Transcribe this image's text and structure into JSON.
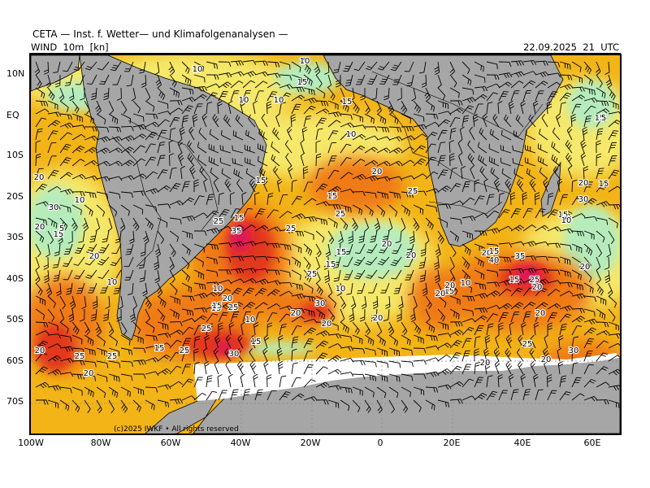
{
  "header": {
    "title": "CETA — Inst. f. Wetter— und Klimafolgenanalysen —",
    "subtitle": "WIND  10m  [kn]",
    "timestamp": "22.09.2025  21  UTC"
  },
  "map": {
    "copyright": "(c)2025 IWKF • All rights reserved",
    "lat_labels": [
      "10N",
      "EQ",
      "10S",
      "20S",
      "30S",
      "40S",
      "50S",
      "60S",
      "70S"
    ],
    "lon_labels": [
      "100W",
      "80W",
      "60W",
      "40W",
      "20W",
      "0",
      "20E",
      "40E",
      "60E"
    ],
    "speed_labels": [
      "5",
      "10",
      "15",
      "10",
      "10",
      "15",
      "10",
      "15",
      "20",
      "15",
      "20",
      "10",
      "15",
      "25",
      "30",
      "25",
      "15",
      "35",
      "25",
      "25",
      "20",
      "15",
      "20",
      "10",
      "15",
      "15",
      "20",
      "20",
      "15",
      "25",
      "30",
      "20",
      "15",
      "10",
      "25",
      "15",
      "10",
      "20",
      "30",
      "40",
      "35",
      "25",
      "15",
      "20",
      "20",
      "20",
      "20",
      "15",
      "10",
      "5",
      "20",
      "25",
      "20",
      "25",
      "20",
      "25",
      "30",
      "20",
      "25",
      "15",
      "10",
      "10",
      "5",
      "20",
      "15",
      "20",
      "15",
      "25",
      "30",
      "20",
      "20",
      "20",
      "15",
      "25",
      "10"
    ],
    "colors": {
      "land": "#a6a6a6",
      "ice": "#ffffff",
      "calm": "#b6ecbc",
      "light": "#f5e86a",
      "moderate": "#f2b417",
      "fresh": "#ef7a18",
      "strong": "#e2371c",
      "gale": "#e0185a"
    }
  }
}
